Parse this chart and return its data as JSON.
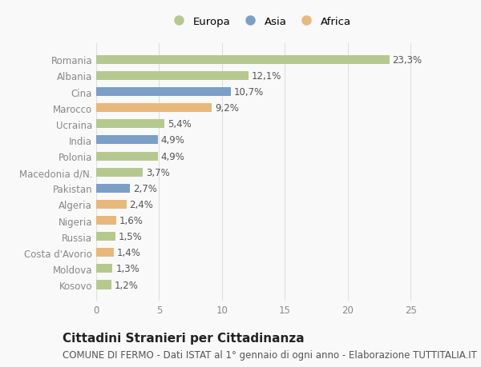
{
  "categories": [
    "Romania",
    "Albania",
    "Cina",
    "Marocco",
    "Ucraina",
    "India",
    "Polonia",
    "Macedonia d/N.",
    "Pakistan",
    "Algeria",
    "Nigeria",
    "Russia",
    "Costa d'Avorio",
    "Moldova",
    "Kosovo"
  ],
  "values": [
    23.3,
    12.1,
    10.7,
    9.2,
    5.4,
    4.9,
    4.9,
    3.7,
    2.7,
    2.4,
    1.6,
    1.5,
    1.4,
    1.3,
    1.2
  ],
  "labels": [
    "23,3%",
    "12,1%",
    "10,7%",
    "9,2%",
    "5,4%",
    "4,9%",
    "4,9%",
    "3,7%",
    "2,7%",
    "2,4%",
    "1,6%",
    "1,5%",
    "1,4%",
    "1,3%",
    "1,2%"
  ],
  "continents": [
    "Europa",
    "Europa",
    "Asia",
    "Africa",
    "Europa",
    "Asia",
    "Europa",
    "Europa",
    "Asia",
    "Africa",
    "Africa",
    "Europa",
    "Africa",
    "Europa",
    "Europa"
  ],
  "colors": {
    "Europa": "#b5c98e",
    "Asia": "#7b9fc7",
    "Africa": "#e8b87a"
  },
  "legend_items": [
    "Europa",
    "Asia",
    "Africa"
  ],
  "xlim": [
    0,
    26
  ],
  "xticks": [
    0,
    5,
    10,
    15,
    20,
    25
  ],
  "title": "Cittadini Stranieri per Cittadinanza",
  "subtitle": "COMUNE DI FERMO - Dati ISTAT al 1° gennaio di ogni anno - Elaborazione TUTTITALIA.IT",
  "bg_color": "#f9f9f9",
  "grid_color": "#e0e0e0",
  "bar_height": 0.55,
  "label_fontsize": 8.5,
  "tick_fontsize": 8.5,
  "title_fontsize": 11,
  "subtitle_fontsize": 8.5
}
